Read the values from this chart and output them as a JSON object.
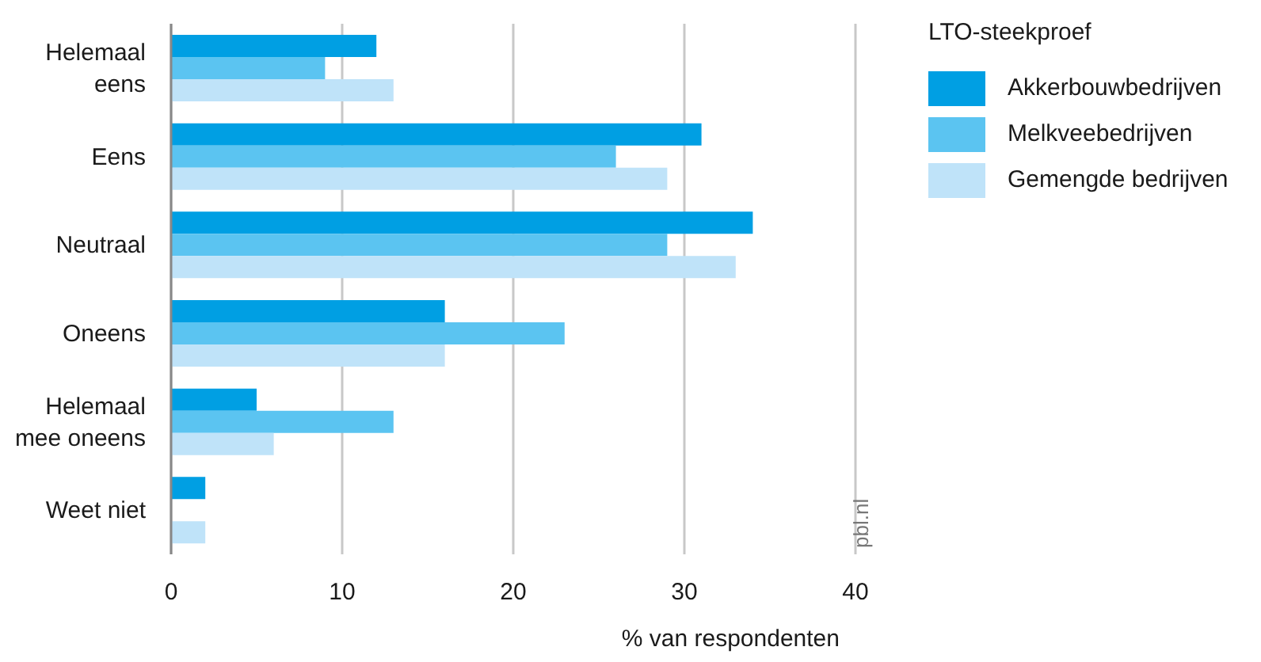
{
  "chart_data": {
    "type": "bar",
    "orientation": "horizontal",
    "categories": [
      "Helemaal eens",
      "Eens",
      "Neutraal",
      "Oneens",
      "Helemaal mee oneens",
      "Weet niet"
    ],
    "series": [
      {
        "name": "Akkerbouwbedrijven",
        "color": "#009fe3",
        "values": [
          12,
          31,
          34,
          16,
          5,
          2
        ]
      },
      {
        "name": "Melkveebedrijven",
        "color": "#5bc4f1",
        "values": [
          9,
          26,
          29,
          23,
          13,
          0
        ]
      },
      {
        "name": "Gemengde bedrijven",
        "color": "#bfe3f9",
        "values": [
          13,
          29,
          33,
          16,
          6,
          2
        ]
      }
    ],
    "xlabel": "% van respondenten",
    "legend_title": "LTO-steekproef",
    "legend": "right",
    "xlim": [
      0,
      40
    ],
    "xticks": [
      0,
      10,
      20,
      30,
      40
    ],
    "grid": "x",
    "annotations": [
      "pbl.nl"
    ]
  }
}
